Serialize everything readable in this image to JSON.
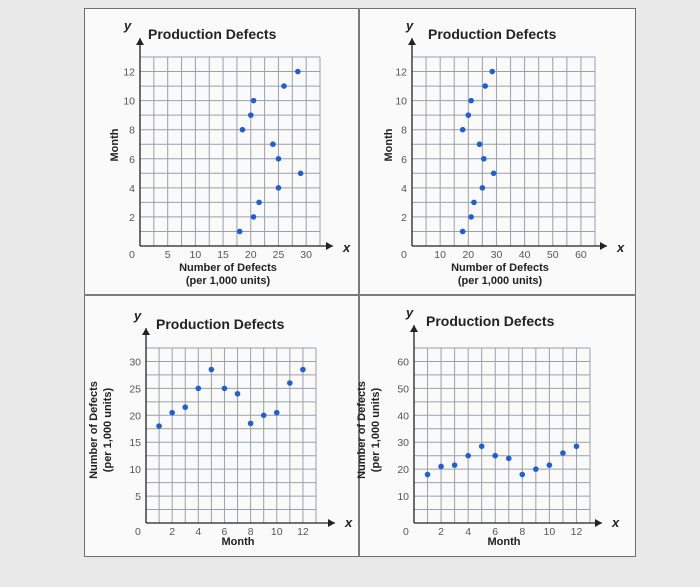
{
  "chart_data": [
    {
      "type": "scatter",
      "title": "Production Defects",
      "x_axis_letter": "x",
      "y_axis_letter": "y",
      "xlabel": [
        "Number of Defects",
        "(per 1,000 units)"
      ],
      "ylabel": [
        "Month"
      ],
      "x_ticks": [
        "5",
        "10",
        "15",
        "20",
        "25",
        "30"
      ],
      "y_ticks": [
        "2",
        "4",
        "6",
        "8",
        "10",
        "12"
      ],
      "origin_label": "0",
      "xlim": [
        0,
        32.5
      ],
      "ylim": [
        0,
        13
      ],
      "grid": true,
      "points": [
        {
          "x": 18,
          "y": 1
        },
        {
          "x": 20.5,
          "y": 2
        },
        {
          "x": 21.5,
          "y": 3
        },
        {
          "x": 25,
          "y": 4
        },
        {
          "x": 29,
          "y": 5
        },
        {
          "x": 25,
          "y": 6
        },
        {
          "x": 24,
          "y": 7
        },
        {
          "x": 18.5,
          "y": 8
        },
        {
          "x": 20,
          "y": 9
        },
        {
          "x": 20.5,
          "y": 10
        },
        {
          "x": 26,
          "y": 11
        },
        {
          "x": 28.5,
          "y": 12
        }
      ]
    },
    {
      "type": "scatter",
      "title": "Production Defects",
      "x_axis_letter": "x",
      "y_axis_letter": "y",
      "xlabel": [
        "Number of Defects",
        "(per 1,000 units)"
      ],
      "ylabel": [
        "Month"
      ],
      "x_ticks": [
        "10",
        "20",
        "30",
        "40",
        "50",
        "60"
      ],
      "y_ticks": [
        "2",
        "4",
        "6",
        "8",
        "10",
        "12"
      ],
      "origin_label": "0",
      "xlim": [
        0,
        65
      ],
      "ylim": [
        0,
        13
      ],
      "grid": true,
      "points": [
        {
          "x": 18,
          "y": 1
        },
        {
          "x": 21,
          "y": 2
        },
        {
          "x": 22,
          "y": 3
        },
        {
          "x": 25,
          "y": 4
        },
        {
          "x": 29,
          "y": 5
        },
        {
          "x": 25.5,
          "y": 6
        },
        {
          "x": 24,
          "y": 7
        },
        {
          "x": 18,
          "y": 8
        },
        {
          "x": 20,
          "y": 9
        },
        {
          "x": 21,
          "y": 10
        },
        {
          "x": 26,
          "y": 11
        },
        {
          "x": 28.5,
          "y": 12
        }
      ]
    },
    {
      "type": "scatter",
      "title": "Production Defects",
      "x_axis_letter": "x",
      "y_axis_letter": "y",
      "xlabel": [
        "Month"
      ],
      "ylabel": [
        "Number of Defects",
        "(per 1,000 units)"
      ],
      "x_ticks": [
        "2",
        "4",
        "6",
        "8",
        "10",
        "12"
      ],
      "y_ticks": [
        "5",
        "10",
        "15",
        "20",
        "25",
        "30"
      ],
      "origin_label": "0",
      "xlim": [
        0,
        13
      ],
      "ylim": [
        0,
        32.5
      ],
      "grid": true,
      "points": [
        {
          "x": 1,
          "y": 18
        },
        {
          "x": 2,
          "y": 20.5
        },
        {
          "x": 3,
          "y": 21.5
        },
        {
          "x": 4,
          "y": 25
        },
        {
          "x": 5,
          "y": 28.5
        },
        {
          "x": 6,
          "y": 25
        },
        {
          "x": 7,
          "y": 24
        },
        {
          "x": 8,
          "y": 18.5
        },
        {
          "x": 9,
          "y": 20
        },
        {
          "x": 10,
          "y": 20.5
        },
        {
          "x": 11,
          "y": 26
        },
        {
          "x": 12,
          "y": 28.5
        }
      ]
    },
    {
      "type": "scatter",
      "title": "Production Defects",
      "x_axis_letter": "x",
      "y_axis_letter": "y",
      "xlabel": [
        "Month"
      ],
      "ylabel": [
        "Number of Defects",
        "(per 1,000 units)"
      ],
      "x_ticks": [
        "2",
        "4",
        "6",
        "8",
        "10",
        "12"
      ],
      "y_ticks": [
        "10",
        "20",
        "30",
        "40",
        "50",
        "60"
      ],
      "origin_label": "0",
      "xlim": [
        0,
        13
      ],
      "ylim": [
        0,
        65
      ],
      "grid": true,
      "points": [
        {
          "x": 1,
          "y": 18
        },
        {
          "x": 2,
          "y": 21
        },
        {
          "x": 3,
          "y": 21.5
        },
        {
          "x": 4,
          "y": 25
        },
        {
          "x": 5,
          "y": 28.5
        },
        {
          "x": 6,
          "y": 25
        },
        {
          "x": 7,
          "y": 24
        },
        {
          "x": 8,
          "y": 18
        },
        {
          "x": 9,
          "y": 20
        },
        {
          "x": 10,
          "y": 21.5
        },
        {
          "x": 11,
          "y": 26
        },
        {
          "x": 12,
          "y": 28.5
        }
      ]
    }
  ]
}
